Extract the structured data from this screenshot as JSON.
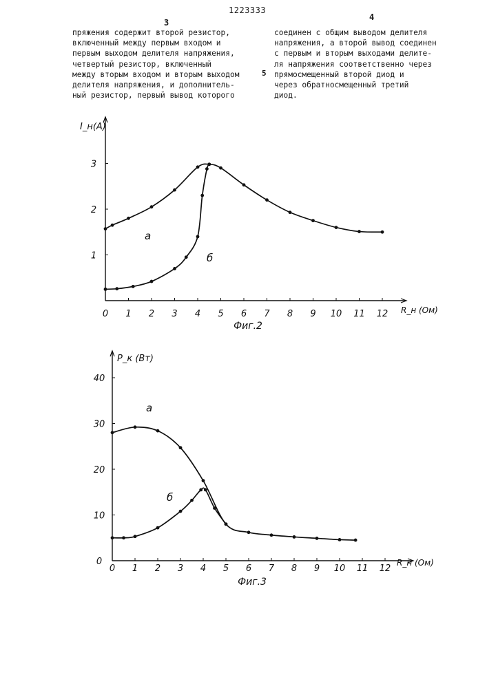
{
  "header": {
    "page_left": "3",
    "doc_number": "1223333",
    "page_right": "4"
  },
  "text": {
    "left_column": [
      "пряжения содержит второй резистор,",
      "включенный между первым входом и",
      "первым выходом делителя напряжения,",
      "четвертый резистор, включенный",
      "между вторым входом и вторым выходом",
      "делителя напряжения, и дополнитель-",
      "ный резистор, первый вывод которого"
    ],
    "line_number": "5",
    "right_column": [
      "соединен с общим выводом делителя",
      "напряжения, а второй вывод соединен",
      "с первым и вторым выходами делите-",
      "ля напряжения соответственно через",
      "прямосмещенный второй диод и",
      "через обратносмещенный третий",
      "диод."
    ]
  },
  "chart_data": [
    {
      "type": "line",
      "caption": "Фиг.2",
      "ylabel": "I_н(A)",
      "xlabel": "R_н (Ом)",
      "xlim": [
        0,
        12.5
      ],
      "ylim": [
        0,
        3.3
      ],
      "x_ticks": [
        0,
        1,
        2,
        3,
        4,
        5,
        6,
        7,
        8,
        9,
        10,
        11,
        12
      ],
      "y_ticks": [
        1,
        2,
        3
      ],
      "grid": false,
      "series": [
        {
          "name": "а",
          "x": [
            0,
            0.3,
            1,
            2,
            3,
            4,
            4.5,
            5,
            6,
            7,
            8,
            9,
            10,
            11,
            12
          ],
          "y": [
            1.57,
            1.65,
            1.8,
            2.05,
            2.42,
            2.92,
            2.98,
            2.9,
            2.53,
            2.2,
            1.93,
            1.75,
            1.6,
            1.51,
            1.5
          ]
        },
        {
          "name": "б",
          "x": [
            0,
            0.5,
            1.2,
            2,
            3,
            3.5,
            4,
            4.2,
            4.4,
            4.5
          ],
          "y": [
            0.25,
            0.26,
            0.31,
            0.42,
            0.7,
            0.95,
            1.4,
            2.3,
            2.88,
            2.98
          ]
        }
      ]
    },
    {
      "type": "line",
      "caption": "Фиг.3",
      "ylabel": "Р_к (Вт)",
      "xlabel": "R_н (Ом)",
      "xlim": [
        0,
        13
      ],
      "ylim": [
        0,
        45
      ],
      "x_ticks": [
        0,
        1,
        2,
        3,
        4,
        5,
        6,
        7,
        8,
        9,
        10,
        11,
        12
      ],
      "y_ticks": [
        0,
        10,
        20,
        30,
        40
      ],
      "grid": false,
      "series": [
        {
          "name": "а",
          "x": [
            0,
            1,
            2,
            3,
            4,
            5,
            6,
            7,
            8,
            9,
            10,
            10.7
          ],
          "y": [
            28,
            29.2,
            28.4,
            24.7,
            17.5,
            8,
            6.2,
            5.6,
            5.2,
            4.9,
            4.6,
            4.5
          ]
        },
        {
          "name": "б",
          "x": [
            0,
            0.5,
            1,
            2,
            3,
            3.5,
            3.9,
            4.1,
            4.5,
            5
          ],
          "y": [
            5,
            5,
            5.3,
            7.2,
            10.8,
            13.2,
            15.5,
            15.5,
            11.5,
            8
          ]
        }
      ]
    }
  ]
}
